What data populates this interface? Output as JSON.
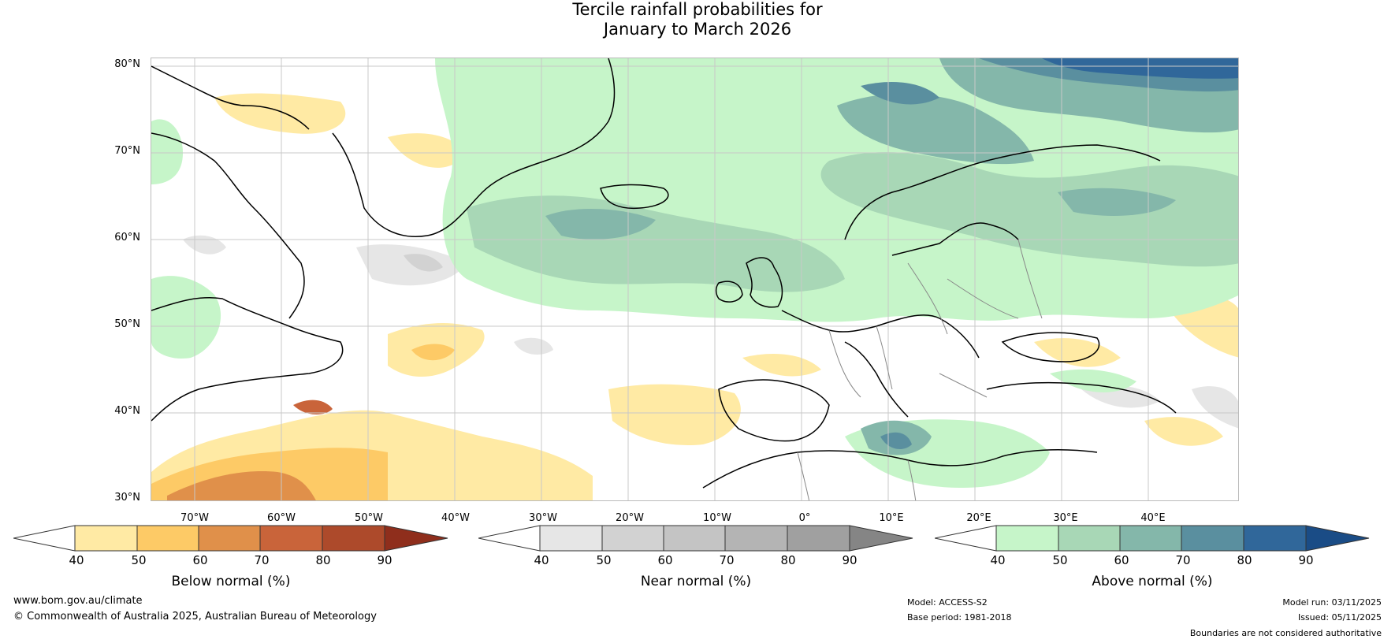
{
  "title": {
    "line1": "Tercile rainfall probabilities for",
    "line2": "January to March 2026"
  },
  "map": {
    "region": "North Atlantic and Europe",
    "lat_labels": [
      "80°N",
      "70°N",
      "60°N",
      "50°N",
      "40°N",
      "30°N"
    ],
    "lon_labels": [
      "70°W",
      "60°W",
      "50°W",
      "40°W",
      "30°W",
      "20°W",
      "10°W",
      "0°",
      "10°E",
      "20°E",
      "30°E",
      "40°E"
    ],
    "lat_range": [
      30,
      81
    ],
    "lon_range": [
      -77,
      48
    ]
  },
  "colorbars": [
    {
      "label": "Below normal (%)",
      "ticks": [
        "40",
        "50",
        "60",
        "70",
        "80",
        "90"
      ],
      "colors": [
        "#ffffff",
        "#ffeaa4",
        "#fdca66",
        "#e0904a",
        "#c9643a",
        "#ad4a2b",
        "#8f2e1c"
      ]
    },
    {
      "label": "Near normal (%)",
      "ticks": [
        "40",
        "50",
        "60",
        "70",
        "80",
        "90"
      ],
      "colors": [
        "#ffffff",
        "#e6e6e6",
        "#d2d2d2",
        "#c4c4c4",
        "#b4b4b4",
        "#a0a0a0",
        "#858585"
      ]
    },
    {
      "label": "Above normal (%)",
      "ticks": [
        "40",
        "50",
        "60",
        "70",
        "80",
        "90"
      ],
      "colors": [
        "#ffffff",
        "#c6f5c9",
        "#a8d7b6",
        "#84b7aa",
        "#5a8f9f",
        "#30679a",
        "#1a4c86"
      ]
    }
  ],
  "footer": {
    "website": "www.bom.gov.au/climate",
    "copyright": "© Commonwealth of Australia 2025, Australian Bureau of Meteorology",
    "model": "Model: ACCESS-S2",
    "base_period": "Base period: 1981-2018",
    "model_run": "Model run: 03/11/2025",
    "issued": "Issued: 05/11/2025",
    "disclaimer": "Boundaries are not considered authoritative"
  }
}
